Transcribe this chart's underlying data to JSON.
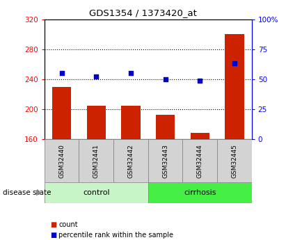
{
  "title": "GDS1354 / 1373420_at",
  "samples": [
    "GSM32440",
    "GSM32441",
    "GSM32442",
    "GSM32443",
    "GSM32444",
    "GSM32445"
  ],
  "counts": [
    230,
    205,
    205,
    193,
    168,
    300
  ],
  "percentiles": [
    55,
    52,
    55,
    50,
    49,
    63
  ],
  "ylim_left": [
    160,
    320
  ],
  "ylim_right": [
    0,
    100
  ],
  "yticks_left": [
    160,
    200,
    240,
    280,
    320
  ],
  "yticks_right": [
    0,
    25,
    50,
    75,
    100
  ],
  "ytick_labels_right": [
    "0",
    "25",
    "50",
    "75",
    "100%"
  ],
  "grid_vals": [
    200,
    240,
    280
  ],
  "groups": [
    {
      "label": "control",
      "indices": [
        0,
        1,
        2
      ],
      "color": "#c8f5c8"
    },
    {
      "label": "cirrhosis",
      "indices": [
        3,
        4,
        5
      ],
      "color": "#44ee44"
    }
  ],
  "bar_color": "#cc2200",
  "dot_color": "#0000cc",
  "bar_width": 0.55,
  "plot_bg_color": "#ffffff",
  "sample_box_color": "#d3d3d3",
  "legend_count_label": "count",
  "legend_percentile_label": "percentile rank within the sample",
  "disease_state_label": "disease state",
  "baseline": 160
}
